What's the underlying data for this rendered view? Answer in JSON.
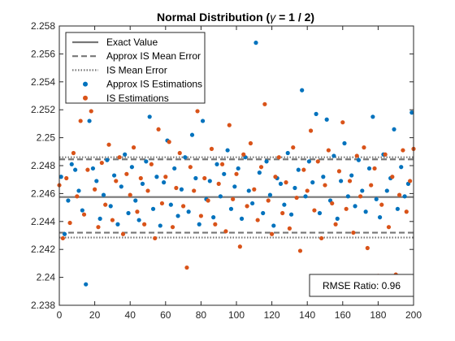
{
  "chart_data": {
    "type": "scatter",
    "title": {
      "prefix": "Normal Distribution (",
      "symbol": "γ",
      "suffix": " = 1 / 2)"
    },
    "xlabel": "",
    "ylabel": "",
    "xlim": [
      0,
      200
    ],
    "ylim": [
      2.238,
      2.258
    ],
    "xticks": [
      "0",
      "20",
      "40",
      "60",
      "80",
      "100",
      "120",
      "140",
      "160",
      "180",
      "200"
    ],
    "yticks": [
      "2.238",
      "2.24",
      "2.242",
      "2.244",
      "2.246",
      "2.248",
      "2.25",
      "2.252",
      "2.254",
      "2.256",
      "2.258"
    ],
    "legend_position": "top-left",
    "grid": false,
    "reference_lines": [
      {
        "name": "Exact Value",
        "style": "solid",
        "color": "#777777",
        "y": [
          2.24575
        ]
      },
      {
        "name": "Approx IS Mean Error",
        "style": "dashed",
        "color": "#777777",
        "y": [
          2.24845,
          2.2432
        ]
      },
      {
        "name": "IS Mean Error",
        "style": "dotted",
        "color": "#777777",
        "y": [
          2.2486,
          2.24285
        ]
      }
    ],
    "series": [
      {
        "name": "Approx IS Estimations",
        "color": "#0072BD",
        "x": [
          1,
          3,
          5,
          7,
          9,
          11,
          13,
          15,
          17,
          19,
          21,
          23,
          25,
          27,
          29,
          31,
          33,
          35,
          37,
          39,
          41,
          43,
          45,
          47,
          49,
          51,
          53,
          55,
          57,
          59,
          61,
          63,
          65,
          67,
          69,
          71,
          73,
          75,
          77,
          79,
          81,
          83,
          85,
          87,
          89,
          91,
          93,
          95,
          97,
          99,
          101,
          103,
          105,
          107,
          109,
          111,
          113,
          115,
          117,
          119,
          121,
          123,
          125,
          127,
          129,
          131,
          133,
          135,
          137,
          139,
          141,
          143,
          145,
          147,
          149,
          151,
          153,
          155,
          157,
          159,
          161,
          163,
          165,
          167,
          169,
          171,
          173,
          175,
          177,
          179,
          181,
          183,
          185,
          187,
          189,
          191,
          193,
          195,
          197,
          199
        ],
        "y": [
          2.2472,
          2.2431,
          2.2455,
          2.2481,
          2.2477,
          2.2462,
          2.2448,
          2.2395,
          2.2512,
          2.2478,
          2.2469,
          2.2442,
          2.2459,
          2.2484,
          2.2451,
          2.2473,
          2.2438,
          2.2465,
          2.2488,
          2.2446,
          2.2479,
          2.2455,
          2.2441,
          2.2467,
          2.2483,
          2.2515,
          2.2449,
          2.2472,
          2.2437,
          2.2468,
          2.2498,
          2.2452,
          2.2478,
          2.2444,
          2.2463,
          2.2486,
          2.2447,
          2.2502,
          2.2471,
          2.2438,
          2.2512,
          2.2456,
          2.2469,
          2.2443,
          2.2481,
          2.2458,
          2.2474,
          2.2491,
          2.2449,
          2.2465,
          2.2478,
          2.2442,
          2.2486,
          2.2462,
          2.2453,
          2.2568,
          2.2475,
          2.2446,
          2.2483,
          2.2459,
          2.2437,
          2.2471,
          2.2467,
          2.2452,
          2.2489,
          2.2445,
          2.2464,
          2.2477,
          2.2534,
          2.2458,
          2.2483,
          2.2468,
          2.2517,
          2.2446,
          2.2472,
          2.2513,
          2.2455,
          2.2487,
          2.2442,
          2.2469,
          2.2496,
          2.2458,
          2.2473,
          2.2451,
          2.2484,
          2.2462,
          2.2447,
          2.2478,
          2.2515,
          2.2456,
          2.2443,
          2.2488,
          2.2462,
          2.2471,
          2.2506,
          2.2449,
          2.2479,
          2.2458,
          2.2467,
          2.2518
        ]
      },
      {
        "name": "IS Estimations",
        "color": "#D95319",
        "x": [
          0,
          2,
          4,
          6,
          8,
          10,
          12,
          14,
          16,
          18,
          20,
          22,
          24,
          26,
          28,
          30,
          32,
          34,
          36,
          38,
          40,
          42,
          44,
          46,
          48,
          50,
          52,
          54,
          56,
          58,
          60,
          62,
          64,
          66,
          68,
          70,
          72,
          74,
          76,
          78,
          80,
          82,
          84,
          86,
          88,
          90,
          92,
          94,
          96,
          98,
          100,
          102,
          104,
          106,
          108,
          110,
          112,
          114,
          116,
          118,
          120,
          122,
          124,
          126,
          128,
          130,
          132,
          134,
          136,
          138,
          140,
          142,
          144,
          146,
          148,
          150,
          152,
          154,
          156,
          158,
          160,
          162,
          164,
          166,
          168,
          170,
          172,
          174,
          176,
          178,
          180,
          182,
          184,
          186,
          188,
          190,
          192,
          194,
          196,
          198,
          200
        ],
        "y": [
          2.2466,
          2.2428,
          2.2471,
          2.2439,
          2.2489,
          2.2458,
          2.2512,
          2.2445,
          2.2477,
          2.2519,
          2.2463,
          2.2436,
          2.2482,
          2.2452,
          2.2495,
          2.2441,
          2.2469,
          2.2486,
          2.2431,
          2.2474,
          2.2459,
          2.2493,
          2.2447,
          2.2471,
          2.2438,
          2.2462,
          2.2481,
          2.2428,
          2.2506,
          2.2453,
          2.2472,
          2.2497,
          2.2436,
          2.2464,
          2.2489,
          2.2451,
          2.2407,
          2.2479,
          2.2462,
          2.2519,
          2.2444,
          2.2471,
          2.2455,
          2.2492,
          2.2438,
          2.2467,
          2.2481,
          2.2433,
          2.2509,
          2.2456,
          2.2474,
          2.2422,
          2.2488,
          2.2451,
          2.2496,
          2.2463,
          2.2441,
          2.2479,
          2.2524,
          2.2455,
          2.2431,
          2.2472,
          2.2486,
          2.2446,
          2.2468,
          2.2435,
          2.2493,
          2.2457,
          2.2419,
          2.2477,
          2.2462,
          2.2505,
          2.2448,
          2.2483,
          2.2428,
          2.2466,
          2.2491,
          2.2453,
          2.2438,
          2.2476,
          2.2511,
          2.2449,
          2.2469,
          2.2432,
          2.2487,
          2.2458,
          2.2493,
          2.2421,
          2.2466,
          2.2478,
          2.2401,
          2.2452,
          2.2488,
          2.2436,
          2.2472,
          2.2402,
          2.2459,
          2.2491,
          2.2447,
          2.2469,
          2.2492
        ]
      }
    ],
    "annotation": "RMSE Ratio: 0.96"
  }
}
